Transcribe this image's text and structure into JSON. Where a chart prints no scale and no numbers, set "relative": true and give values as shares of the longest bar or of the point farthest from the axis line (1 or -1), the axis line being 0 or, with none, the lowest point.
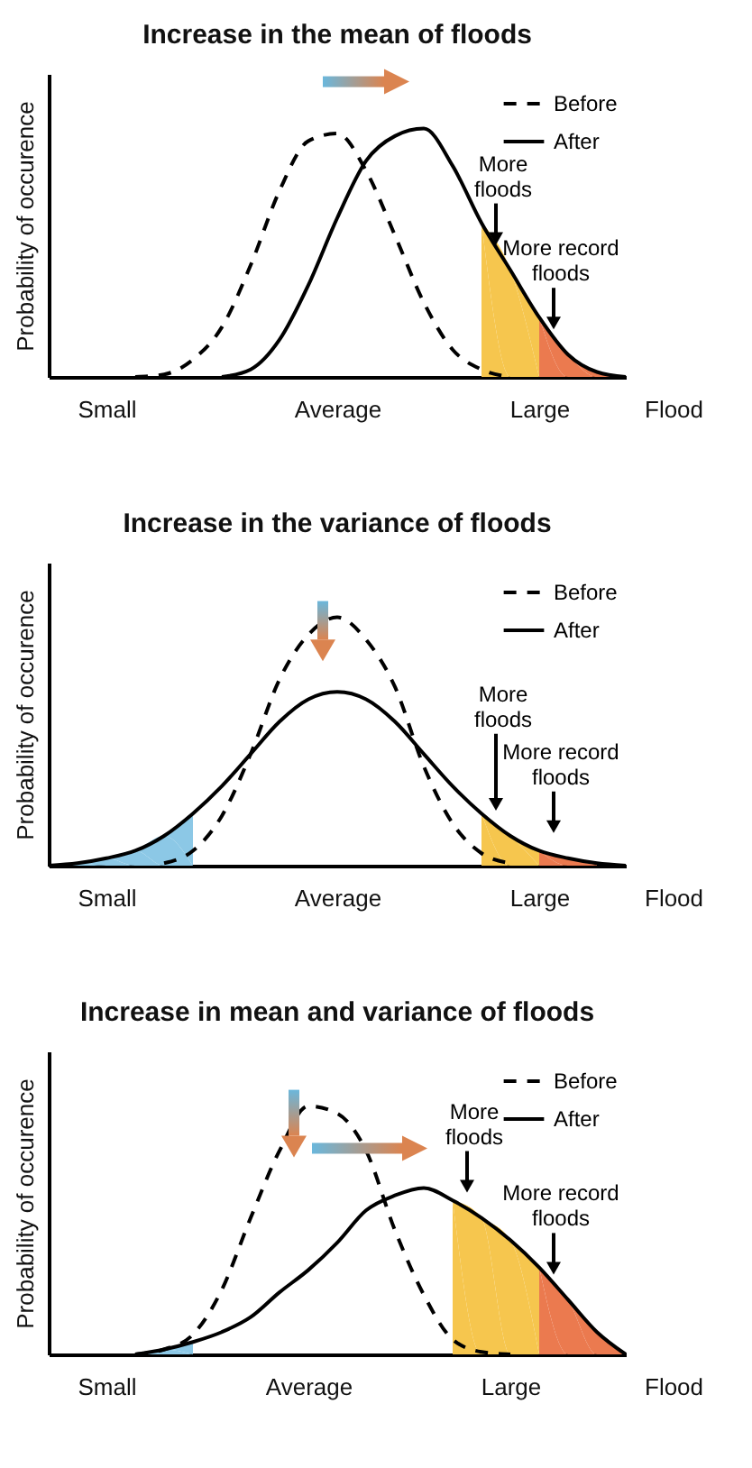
{
  "chart_data": [
    {
      "type": "line",
      "title": "Increase in the mean of floods",
      "xlabel": "Flood",
      "ylabel": "Probability of occurence",
      "relative": true,
      "tick_labels": "x",
      "grid": false,
      "legend": "top right",
      "categories": [
        null,
        null,
        "Small",
        null,
        null,
        null,
        null,
        null,
        null,
        null,
        "Average",
        null,
        null,
        null,
        null,
        null,
        null,
        "Large",
        null,
        null,
        null
      ],
      "series": [
        {
          "type": "area",
          "color": "#f6c64e",
          "values": [
            null,
            null,
            null,
            null,
            null,
            null,
            null,
            null,
            null,
            null,
            null,
            null,
            null,
            null,
            null,
            0.62,
            0.43,
            0.24,
            null,
            null,
            null
          ]
        },
        {
          "type": "area",
          "color": "#eb7a4f",
          "values": [
            null,
            null,
            null,
            null,
            null,
            null,
            null,
            null,
            null,
            null,
            null,
            null,
            null,
            null,
            null,
            null,
            null,
            0.24,
            0.09,
            0.02,
            0
          ]
        },
        {
          "name": "Before",
          "color": "#000000",
          "line_style": "dashed",
          "values": [
            null,
            null,
            null,
            0,
            0.01,
            0.07,
            0.2,
            0.45,
            0.75,
            0.95,
            0.98,
            0.83,
            0.57,
            0.3,
            0.11,
            0.03,
            0,
            null,
            null,
            null,
            null
          ]
        },
        {
          "name": "After",
          "color": "#000000",
          "line_style": "solid",
          "values": [
            null,
            null,
            null,
            null,
            null,
            null,
            0,
            0.03,
            0.15,
            0.37,
            0.64,
            0.87,
            0.97,
            1,
            0.85,
            0.62,
            0.43,
            0.24,
            0.09,
            0.02,
            0
          ]
        }
      ],
      "annotations": [
        "More floods",
        "More record floods"
      ]
    },
    {
      "type": "line",
      "title": "Increase in the variance of floods",
      "xlabel": "Flood",
      "ylabel": "Probability of occurence",
      "relative": true,
      "tick_labels": "x",
      "grid": false,
      "legend": "top right",
      "categories": [
        null,
        null,
        "Small",
        null,
        null,
        null,
        null,
        null,
        null,
        null,
        "Average",
        null,
        null,
        null,
        null,
        null,
        null,
        "Large",
        null,
        null,
        null
      ],
      "series": [
        {
          "type": "area",
          "color": "#8cc8e6",
          "values": [
            0,
            0.01,
            0.03,
            0.06,
            0.12,
            0.21,
            null,
            null,
            null,
            null,
            null,
            null,
            null,
            null,
            null,
            null,
            null,
            null,
            null,
            null,
            null
          ]
        },
        {
          "type": "area",
          "color": "#f6c64e",
          "values": [
            null,
            null,
            null,
            null,
            null,
            null,
            null,
            null,
            null,
            null,
            null,
            null,
            null,
            null,
            null,
            0.21,
            0.12,
            0.06,
            null,
            null,
            null
          ]
        },
        {
          "type": "area",
          "color": "#eb7a4f",
          "values": [
            null,
            null,
            null,
            null,
            null,
            null,
            null,
            null,
            null,
            null,
            null,
            null,
            null,
            null,
            null,
            null,
            null,
            0.06,
            0.03,
            0.01,
            null
          ]
        },
        {
          "name": "Before",
          "color": "#000000",
          "line_style": "dashed",
          "values": [
            null,
            null,
            null,
            null,
            0.01,
            0.06,
            0.2,
            0.45,
            0.75,
            0.93,
            1,
            0.91,
            0.72,
            0.4,
            0.17,
            0.05,
            0.01,
            null,
            null,
            null,
            null
          ]
        },
        {
          "name": "After",
          "color": "#000000",
          "line_style": "solid",
          "values": [
            0,
            0.01,
            0.03,
            0.06,
            0.12,
            0.21,
            0.32,
            0.45,
            0.58,
            0.67,
            0.7,
            0.67,
            0.58,
            0.45,
            0.32,
            0.21,
            0.12,
            0.06,
            0.03,
            0.01,
            0
          ]
        }
      ],
      "annotations": [
        "More floods",
        "More record floods"
      ]
    },
    {
      "type": "line",
      "title": "Increase in mean and variance of floods",
      "xlabel": "Flood",
      "ylabel": "Probability of occurence",
      "relative": true,
      "tick_labels": "x",
      "grid": false,
      "legend": "top right",
      "categories": [
        null,
        null,
        "Small",
        null,
        null,
        null,
        null,
        null,
        null,
        "Average",
        null,
        null,
        null,
        null,
        null,
        null,
        "Large",
        null,
        null,
        null,
        null
      ],
      "series": [
        {
          "type": "area",
          "color": "#8cc8e6",
          "values": [
            null,
            null,
            null,
            0,
            0.02,
            0.05,
            null,
            null,
            null,
            null,
            null,
            null,
            null,
            null,
            null,
            null,
            null,
            null,
            null,
            null,
            null
          ]
        },
        {
          "type": "area",
          "color": "#f6c64e",
          "values": [
            null,
            null,
            null,
            null,
            null,
            null,
            null,
            null,
            null,
            null,
            null,
            null,
            null,
            null,
            0.62,
            0.55,
            0.46,
            0.35,
            null,
            null,
            null
          ]
        },
        {
          "type": "area",
          "color": "#eb7a4f",
          "values": [
            null,
            null,
            null,
            null,
            null,
            null,
            null,
            null,
            null,
            null,
            null,
            null,
            null,
            null,
            null,
            null,
            null,
            0.35,
            0.22,
            0.09,
            0
          ]
        },
        {
          "name": "Before",
          "color": "#000000",
          "line_style": "dashed",
          "values": [
            null,
            null,
            null,
            0,
            0.02,
            0.08,
            0.26,
            0.55,
            0.82,
            1,
            0.97,
            0.82,
            0.5,
            0.24,
            0.06,
            0.01,
            0,
            null,
            null,
            null,
            null
          ]
        },
        {
          "name": "After",
          "color": "#000000",
          "line_style": "solid",
          "values": [
            null,
            null,
            null,
            0,
            0.02,
            0.05,
            0.09,
            0.15,
            0.25,
            0.34,
            0.45,
            0.58,
            0.64,
            0.67,
            0.62,
            0.55,
            0.46,
            0.35,
            0.22,
            0.09,
            0
          ]
        }
      ],
      "annotations": [
        "More floods",
        "More record floods"
      ]
    }
  ]
}
